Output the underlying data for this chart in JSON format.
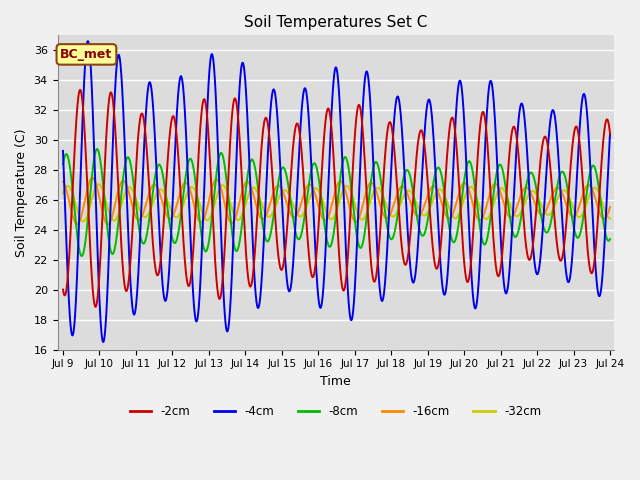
{
  "title": "Soil Temperatures Set C",
  "xlabel": "Time",
  "ylabel": "Soil Temperature (C)",
  "ylim": [
    16,
    37
  ],
  "yticks": [
    16,
    18,
    20,
    22,
    24,
    26,
    28,
    30,
    32,
    34,
    36
  ],
  "x_start_day": 9,
  "x_end_day": 24,
  "x_tick_days": [
    9,
    10,
    11,
    12,
    13,
    14,
    15,
    16,
    17,
    18,
    19,
    20,
    21,
    22,
    23,
    24
  ],
  "series_names": [
    "-2cm",
    "-4cm",
    "-8cm",
    "-16cm",
    "-32cm"
  ],
  "series_colors": [
    "#cc0000",
    "#0000ee",
    "#00bb00",
    "#ff8800",
    "#cccc00"
  ],
  "series_means": [
    26.2,
    26.5,
    25.8,
    25.9,
    25.8
  ],
  "series_amp_start": [
    6.5,
    9.0,
    3.2,
    1.4,
    1.1
  ],
  "series_amp_end": [
    4.5,
    6.0,
    2.2,
    1.0,
    0.9
  ],
  "series_phases": [
    0.3,
    0.55,
    -0.15,
    -0.3,
    -0.1
  ],
  "series_period": 0.85,
  "label_box_text": "BC_met",
  "label_box_facecolor": "#ffff99",
  "label_box_edgecolor": "#8B4513",
  "label_box_textcolor": "#8B0000",
  "plot_bg_color": "#dcdcdc",
  "fig_bg_color": "#f0f0f0",
  "grid_color": "#ffffff",
  "linewidth": 1.4,
  "n_points": 2000
}
